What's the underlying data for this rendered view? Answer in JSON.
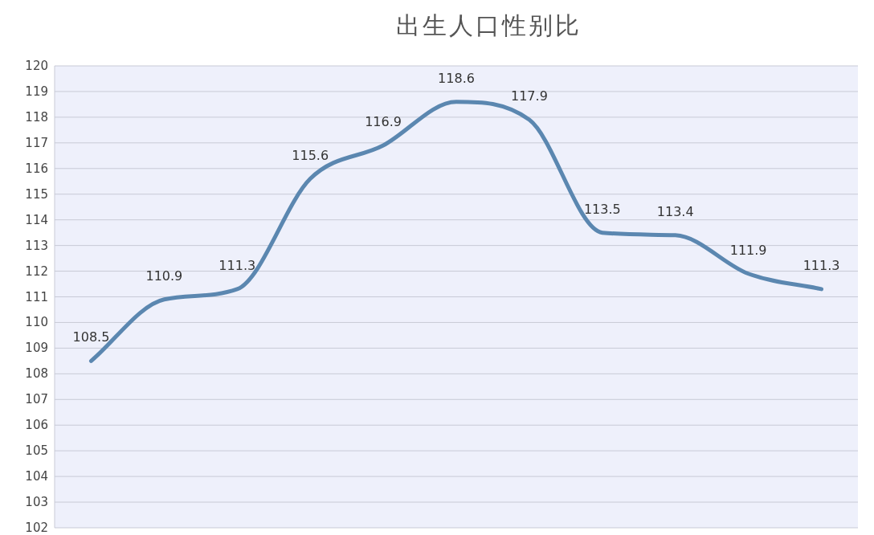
{
  "chart_data": {
    "type": "line",
    "title": "出生人口性别比",
    "categories": [
      null,
      null,
      null,
      null,
      null,
      null,
      null,
      null,
      null,
      null,
      null
    ],
    "values": [
      108.5,
      110.9,
      111.3,
      115.6,
      116.9,
      118.6,
      117.9,
      113.5,
      113.4,
      111.9,
      111.3
    ],
    "color": "#5b87b0",
    "ylim": [
      102,
      120
    ],
    "yticks": [
      102,
      103,
      104,
      105,
      106,
      107,
      108,
      109,
      110,
      111,
      112,
      113,
      114,
      115,
      116,
      117,
      118,
      119,
      120
    ],
    "grid": "y",
    "data_labels": true
  }
}
